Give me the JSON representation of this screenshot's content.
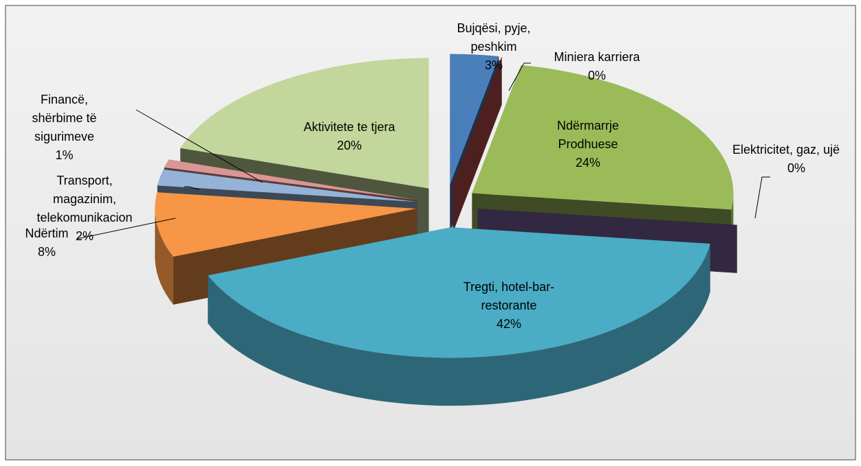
{
  "chart_data": {
    "type": "pie",
    "categories": [
      "Bujqësi, pyje, peshkim",
      "Miniera karriera",
      "Ndërmarrje Prodhuese",
      "Elektricitet, gaz, ujë",
      "Tregti, hotel-bar-restorante",
      "Ndërtim",
      "Transport, magazinim, telekomunikacion",
      "Financë, shërbime të sigurimeve",
      "Aktivitete te tjera"
    ],
    "values": [
      3,
      0,
      24,
      0,
      42,
      8,
      2,
      1,
      20
    ],
    "value_labels": [
      "3%",
      "0%",
      "24%",
      "0%",
      "42%",
      "8%",
      "2%",
      "1%",
      "20%"
    ],
    "colors": [
      "#4a7ebb",
      "#c0504d",
      "#9bbb59",
      "#8064a2",
      "#4bacc6",
      "#f79646",
      "#95b3d7",
      "#d99694",
      "#c3d69b"
    ]
  }
}
